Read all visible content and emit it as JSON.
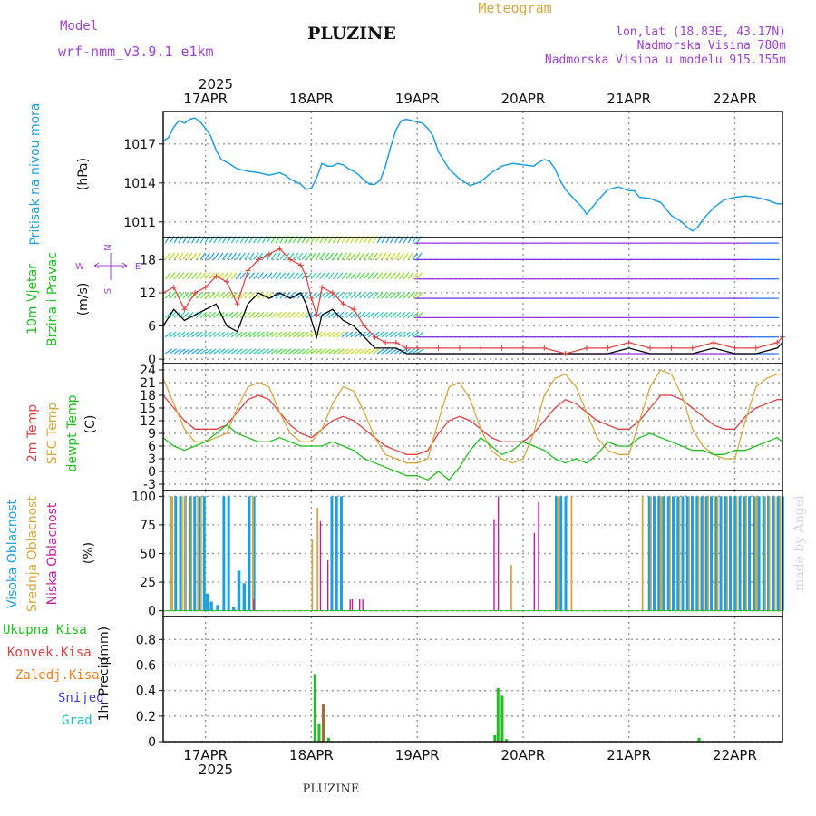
{
  "header": {
    "model_label": "Model",
    "model_name": "wrf-nmm_v3.9.1 e1km",
    "station": "PLUZINE",
    "product": "Meteogram",
    "lonlat": "lon,lat (18.83E, 43.17N)",
    "elevation": "Nadmorska Visina 780m",
    "model_elevation": "Nadmorska Visina u modelu 915.155m",
    "year": "2025",
    "footer_station": "PLUZINE",
    "credit": "made by Angel"
  },
  "colors": {
    "pressure": "#1ea0e0",
    "t2m": "#e04040",
    "sfc": "#d8a840",
    "dewpt": "#20c020",
    "high_cloud": "#1ea0e0",
    "mid_cloud": "#d8a840",
    "low_cloud": "#c020a0",
    "total_precip": "#20c020",
    "conv_precip": "#e04040",
    "frozen": "#f08020",
    "snow": "#4040e0",
    "hail": "#20c0c0",
    "wind_speed": "#000000",
    "gust": "#e04040",
    "wind_legend": "#a040d0"
  },
  "chart_data": [
    {
      "type": "line",
      "panel": "pressure",
      "ylabel": "Pritisak na nivou mora",
      "unit": "(hPa)",
      "x_dates": [
        "17APR",
        "18APR",
        "19APR",
        "20APR",
        "21APR",
        "22APR"
      ],
      "yticks": [
        1011,
        1014,
        1017
      ],
      "ylim": [
        1009.8,
        1019.5
      ],
      "xlim_days": [
        16.6,
        22.45
      ],
      "series": [
        {
          "x": [
            16.6,
            16.65,
            16.7,
            16.75,
            16.8,
            16.85,
            16.9,
            16.95,
            17.0,
            17.05,
            17.1,
            17.15,
            17.2,
            17.3,
            17.4,
            17.5,
            17.6,
            17.7,
            17.75,
            17.8,
            17.85,
            17.9,
            17.95,
            18.0,
            18.05,
            18.1,
            18.15,
            18.2,
            18.25,
            18.3,
            18.35,
            18.4,
            18.45,
            18.5,
            18.55,
            18.6,
            18.65,
            18.7,
            18.75,
            18.8,
            18.85,
            18.9,
            18.95,
            19.0,
            19.05,
            19.1,
            19.15,
            19.2,
            19.3,
            19.4,
            19.5,
            19.6,
            19.7,
            19.8,
            19.9,
            20.0,
            20.1,
            20.15,
            20.2,
            20.25,
            20.3,
            20.35,
            20.4,
            20.5,
            20.55,
            20.6,
            20.7,
            20.8,
            20.9,
            21.0,
            21.05,
            21.1,
            21.2,
            21.3,
            21.4,
            21.5,
            21.55,
            21.6,
            21.65,
            21.7,
            21.8,
            21.9,
            22.0,
            22.1,
            22.2,
            22.3,
            22.4,
            22.45
          ],
          "values": [
            1017.2,
            1017.5,
            1018.3,
            1018.8,
            1018.6,
            1018.9,
            1019.0,
            1018.7,
            1018.2,
            1017.6,
            1016.5,
            1015.8,
            1015.6,
            1015.1,
            1014.9,
            1014.8,
            1014.6,
            1014.8,
            1014.6,
            1014.3,
            1014.1,
            1013.9,
            1013.5,
            1013.6,
            1014.4,
            1015.5,
            1015.3,
            1015.3,
            1015.5,
            1015.4,
            1015.1,
            1014.9,
            1014.6,
            1014.2,
            1013.9,
            1013.9,
            1014.2,
            1015.3,
            1016.8,
            1018.1,
            1018.8,
            1018.9,
            1018.8,
            1018.7,
            1018.6,
            1018.2,
            1017.6,
            1016.4,
            1015.1,
            1014.3,
            1013.8,
            1014.1,
            1014.8,
            1015.3,
            1015.5,
            1015.4,
            1015.3,
            1015.6,
            1015.8,
            1015.7,
            1015.1,
            1014.2,
            1013.5,
            1012.6,
            1012.2,
            1011.6,
            1012.6,
            1013.5,
            1013.7,
            1013.4,
            1013.4,
            1012.9,
            1012.8,
            1012.5,
            1011.5,
            1011.0,
            1010.6,
            1010.3,
            1010.6,
            1011.2,
            1012.1,
            1012.7,
            1012.9,
            1013.0,
            1012.9,
            1012.7,
            1012.4,
            1012.4
          ]
        }
      ]
    },
    {
      "type": "line",
      "panel": "wind",
      "ylabel": "10m Vjetar Brzina i Pravac",
      "unit": "(m/s)",
      "compass": {
        "n": "N",
        "s": "S",
        "e": "E",
        "w": "W"
      },
      "yticks": [
        0,
        6,
        12,
        18
      ],
      "ylim": [
        -0.8,
        22
      ],
      "series": [
        {
          "name": "speed",
          "x": [
            16.6,
            16.7,
            16.8,
            16.9,
            17.0,
            17.1,
            17.2,
            17.3,
            17.4,
            17.5,
            17.6,
            17.7,
            17.8,
            17.9,
            17.95,
            18.0,
            18.05,
            18.1,
            18.2,
            18.3,
            18.4,
            18.5,
            18.6,
            18.7,
            18.8,
            18.9,
            19.0,
            19.2,
            19.4,
            19.6,
            19.8,
            20.0,
            20.2,
            20.4,
            20.6,
            20.8,
            21.0,
            21.2,
            21.4,
            21.6,
            21.8,
            22.0,
            22.2,
            22.4,
            22.45
          ],
          "values": [
            6,
            9,
            7,
            8,
            9,
            10,
            6,
            5,
            10,
            12,
            11,
            12,
            11,
            12,
            10,
            7,
            4,
            8,
            9,
            7,
            6,
            4,
            2,
            2,
            2,
            1,
            1,
            1,
            1,
            1,
            1,
            1,
            1,
            1,
            1,
            1,
            2,
            1,
            1,
            1,
            2,
            1,
            1,
            2,
            3
          ]
        },
        {
          "name": "gust",
          "x": [
            16.6,
            16.7,
            16.8,
            16.9,
            17.0,
            17.1,
            17.2,
            17.3,
            17.4,
            17.5,
            17.6,
            17.7,
            17.8,
            17.9,
            17.95,
            18.0,
            18.05,
            18.1,
            18.2,
            18.3,
            18.4,
            18.5,
            18.6,
            18.7,
            18.8,
            18.9,
            19.0,
            19.2,
            19.4,
            19.6,
            19.8,
            20.0,
            20.2,
            20.4,
            20.6,
            20.8,
            21.0,
            21.2,
            21.4,
            21.6,
            21.8,
            22.0,
            22.2,
            22.4,
            22.45
          ],
          "values": [
            12,
            13,
            9,
            12,
            13,
            15,
            14,
            10,
            16,
            18,
            19,
            20,
            18,
            17,
            15,
            11,
            8,
            13,
            12,
            10,
            9,
            6,
            4,
            3,
            3,
            2,
            2,
            2,
            2,
            2,
            2,
            2,
            2,
            1,
            2,
            2,
            3,
            2,
            2,
            2,
            3,
            2,
            2,
            3,
            4
          ]
        }
      ]
    },
    {
      "type": "line",
      "panel": "temperature",
      "ylabels": [
        "2m Temp",
        "SFC Temp",
        "dewpt Temp"
      ],
      "unit": "(C)",
      "yticks": [
        -3,
        0,
        3,
        6,
        9,
        12,
        15,
        18,
        21,
        24
      ],
      "ylim": [
        -4.5,
        25.5
      ],
      "series": [
        {
          "name": "2m Temp",
          "x": [
            16.6,
            16.7,
            16.8,
            16.9,
            17.0,
            17.1,
            17.2,
            17.3,
            17.4,
            17.5,
            17.6,
            17.7,
            17.8,
            17.9,
            18.0,
            18.1,
            18.2,
            18.3,
            18.4,
            18.5,
            18.6,
            18.7,
            18.8,
            18.9,
            19.0,
            19.1,
            19.2,
            19.3,
            19.4,
            19.5,
            19.6,
            19.7,
            19.8,
            19.9,
            20.0,
            20.1,
            20.2,
            20.3,
            20.4,
            20.5,
            20.6,
            20.7,
            20.8,
            20.9,
            21.0,
            21.1,
            21.2,
            21.3,
            21.4,
            21.5,
            21.6,
            21.7,
            21.8,
            21.9,
            22.0,
            22.1,
            22.2,
            22.3,
            22.4,
            22.45
          ],
          "values": [
            18,
            15,
            12,
            10,
            10,
            10,
            11,
            14,
            17,
            18,
            17,
            14,
            11,
            9,
            8,
            10,
            12,
            13,
            12,
            10,
            8,
            6,
            5,
            4,
            4,
            5,
            9,
            12,
            13,
            12,
            10,
            8,
            7,
            7,
            7,
            9,
            12,
            15,
            17,
            16,
            14,
            12,
            11,
            10,
            10,
            12,
            15,
            18,
            18,
            17,
            15,
            13,
            11,
            10,
            10,
            13,
            15,
            16,
            17,
            17
          ]
        },
        {
          "name": "SFC Temp",
          "x": [
            16.6,
            16.7,
            16.8,
            16.9,
            17.0,
            17.1,
            17.2,
            17.3,
            17.4,
            17.5,
            17.6,
            17.7,
            17.8,
            17.9,
            18.0,
            18.1,
            18.2,
            18.3,
            18.4,
            18.5,
            18.6,
            18.7,
            18.8,
            18.9,
            19.0,
            19.1,
            19.2,
            19.3,
            19.4,
            19.5,
            19.6,
            19.7,
            19.8,
            19.9,
            20.0,
            20.1,
            20.2,
            20.3,
            20.4,
            20.5,
            20.6,
            20.7,
            20.8,
            20.9,
            21.0,
            21.1,
            21.2,
            21.3,
            21.4,
            21.5,
            21.6,
            21.7,
            21.8,
            21.9,
            22.0,
            22.1,
            22.2,
            22.3,
            22.4,
            22.45
          ],
          "values": [
            22,
            16,
            10,
            7,
            7,
            8,
            9,
            15,
            20,
            21,
            20,
            14,
            9,
            7,
            7,
            10,
            16,
            20,
            19,
            14,
            8,
            4,
            3,
            2,
            2,
            3,
            12,
            20,
            21,
            17,
            10,
            5,
            3,
            2,
            3,
            9,
            18,
            22,
            23,
            20,
            14,
            8,
            5,
            4,
            4,
            12,
            20,
            24,
            23,
            18,
            10,
            6,
            4,
            3,
            3,
            12,
            20,
            22,
            23,
            23
          ]
        },
        {
          "name": "dewpt Temp",
          "x": [
            16.6,
            16.7,
            16.8,
            16.9,
            17.0,
            17.1,
            17.2,
            17.3,
            17.4,
            17.5,
            17.6,
            17.7,
            17.8,
            17.9,
            18.0,
            18.1,
            18.2,
            18.3,
            18.4,
            18.5,
            18.6,
            18.7,
            18.8,
            18.9,
            19.0,
            19.1,
            19.2,
            19.3,
            19.4,
            19.5,
            19.6,
            19.7,
            19.8,
            19.9,
            20.0,
            20.1,
            20.2,
            20.3,
            20.4,
            20.5,
            20.6,
            20.7,
            20.8,
            20.9,
            21.0,
            21.1,
            21.2,
            21.3,
            21.4,
            21.5,
            21.6,
            21.7,
            21.8,
            21.9,
            22.0,
            22.1,
            22.2,
            22.3,
            22.4,
            22.45
          ],
          "values": [
            8,
            6,
            5,
            6,
            7,
            9,
            11,
            9,
            8,
            7,
            7,
            8,
            7,
            6,
            6,
            6,
            7,
            6,
            5,
            3,
            2,
            1,
            0,
            -1,
            -1,
            -2,
            0,
            -2,
            1,
            5,
            8,
            6,
            4,
            5,
            7,
            6,
            5,
            3,
            2,
            3,
            2,
            4,
            7,
            6,
            6,
            8,
            9,
            8,
            7,
            6,
            5,
            5,
            4,
            4,
            5,
            5,
            6,
            7,
            8,
            7
          ]
        }
      ]
    },
    {
      "type": "bar",
      "panel": "cloud",
      "ylabels": [
        "Visoka Oblacnost",
        "Srednja Oblacnost",
        "Niska Oblacnost"
      ],
      "unit": "(%)",
      "yticks": [
        0,
        25,
        50,
        75,
        100
      ],
      "ylim": [
        -5,
        105
      ],
      "series": [
        {
          "name": "Visoka Oblacnost",
          "segments": [
            [
              16.66,
              16.98,
              100
            ],
            [
              17.16,
              17.21,
              100
            ],
            [
              17.4,
              17.48,
              100
            ],
            [
              18.18,
              18.28,
              100
            ],
            [
              20.3,
              20.42,
              100
            ],
            [
              21.18,
              22.45,
              100
            ]
          ],
          "points": [
            [
              17.0,
              15
            ],
            [
              17.04,
              8
            ],
            [
              17.1,
              5
            ],
            [
              17.3,
              35
            ],
            [
              17.35,
              24
            ],
            [
              17.25,
              3
            ]
          ]
        },
        {
          "name": "Srednja Oblacnost",
          "points": [
            [
              16.67,
              100
            ],
            [
              16.8,
              100
            ],
            [
              16.92,
              100
            ],
            [
              17.44,
              100
            ],
            [
              18.0,
              62
            ],
            [
              18.05,
              90
            ],
            [
              19.88,
              40
            ],
            [
              20.32,
              100
            ],
            [
              20.45,
              100
            ],
            [
              21.12,
              100
            ],
            [
              21.3,
              100
            ],
            [
              21.7,
              100
            ],
            [
              21.8,
              100
            ],
            [
              22.2,
              100
            ],
            [
              22.32,
              100
            ],
            [
              22.42,
              100
            ]
          ]
        },
        {
          "name": "Niska Oblacnost",
          "points": [
            [
              17.45,
              10
            ],
            [
              18.08,
              78
            ],
            [
              18.15,
              44
            ],
            [
              18.36,
              10
            ],
            [
              18.38,
              10
            ],
            [
              18.45,
              10
            ],
            [
              18.48,
              10
            ],
            [
              19.72,
              80
            ],
            [
              19.76,
              100
            ],
            [
              20.1,
              68
            ],
            [
              20.14,
              95
            ]
          ]
        }
      ]
    },
    {
      "type": "bar",
      "panel": "precip",
      "ylabel": "1hr Precip",
      "unit": "(mm)",
      "legend": [
        "Ukupna Kisa",
        "Konvek.Kisa",
        "Zaledj.Kisa",
        "Snijeg",
        "Grad"
      ],
      "yticks": [
        0,
        0.2,
        0.4,
        0.6,
        0.8
      ],
      "ylim": [
        0,
        0.98
      ],
      "series": [
        {
          "name": "Ukupna Kisa",
          "points": [
            [
              18.02,
              0.53
            ],
            [
              18.06,
              0.14
            ],
            [
              18.1,
              0.29
            ],
            [
              18.15,
              0.03
            ],
            [
              19.72,
              0.05
            ],
            [
              19.75,
              0.42
            ],
            [
              19.79,
              0.36
            ],
            [
              19.83,
              0.02
            ],
            [
              21.65,
              0.03
            ]
          ]
        },
        {
          "name": "Konvek.Kisa",
          "points": [
            [
              18.11,
              0.29
            ],
            [
              19.76,
              0.01
            ]
          ]
        }
      ]
    }
  ]
}
